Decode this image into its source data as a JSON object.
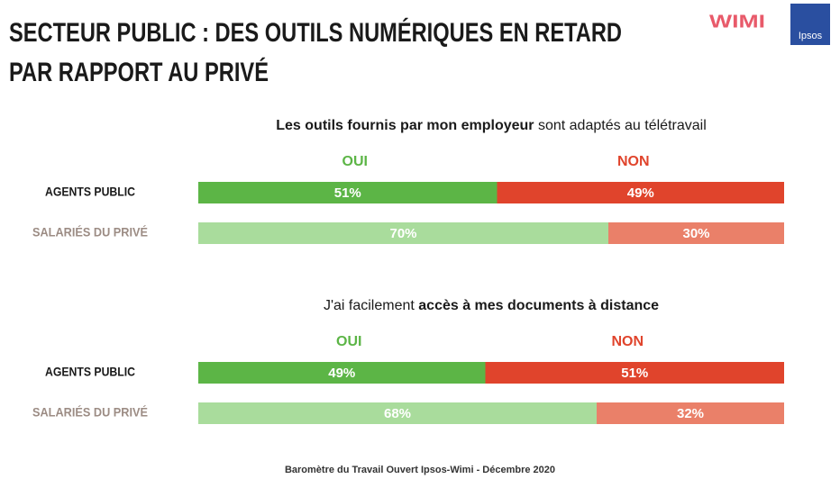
{
  "title": [
    "SECTEUR PUBLIC : DES OUTILS NUMÉRIQUES EN RETARD",
    "PAR RAPPORT AU PRIVÉ"
  ],
  "logos": [
    "WIMI",
    "Ipsos"
  ],
  "footer": "Baromètre du Travail Ouvert Ipsos-Wimi - Décembre 2020",
  "chart_data": [
    {
      "type": "bar",
      "orientation": "horizontal",
      "stacked": true,
      "subtitle": [
        {
          "text": "Les outils fournis par mon employeur",
          "bold": true
        },
        {
          "text": " sont adaptés au télétravail",
          "bold": false
        }
      ],
      "categories": [
        "AGENTS PUBLIC",
        "SALARIÉS DU PRIVÉ"
      ],
      "category_colors": [
        "#1a1a1a",
        "#9c8c84"
      ],
      "xlim": [
        0,
        100
      ],
      "series": [
        {
          "name": "OUI",
          "color": "#5cb546",
          "colors": [
            "#5cb546",
            "#a9dc9c"
          ],
          "values": [
            51,
            70
          ],
          "value_labels": [
            "51%",
            "70%"
          ]
        },
        {
          "name": "NON",
          "color": "#e0442c",
          "colors": [
            "#e0442c",
            "#ea8069"
          ],
          "values": [
            49,
            30
          ],
          "value_labels": [
            "49%",
            "30%"
          ]
        }
      ]
    },
    {
      "type": "bar",
      "orientation": "horizontal",
      "stacked": true,
      "subtitle": [
        {
          "text": "J'ai facilement ",
          "bold": false
        },
        {
          "text": "accès à mes documents à distance",
          "bold": true
        }
      ],
      "categories": [
        "AGENTS PUBLIC",
        "SALARIÉS DU PRIVÉ"
      ],
      "category_colors": [
        "#1a1a1a",
        "#9c8c84"
      ],
      "xlim": [
        0,
        100
      ],
      "series": [
        {
          "name": "OUI",
          "color": "#5cb546",
          "colors": [
            "#5cb546",
            "#a9dc9c"
          ],
          "values": [
            49,
            68
          ],
          "value_labels": [
            "49%",
            "68%"
          ]
        },
        {
          "name": "NON",
          "color": "#e0442c",
          "colors": [
            "#e0442c",
            "#ea8069"
          ],
          "values": [
            51,
            32
          ],
          "value_labels": [
            "51%",
            "32%"
          ]
        }
      ]
    }
  ]
}
